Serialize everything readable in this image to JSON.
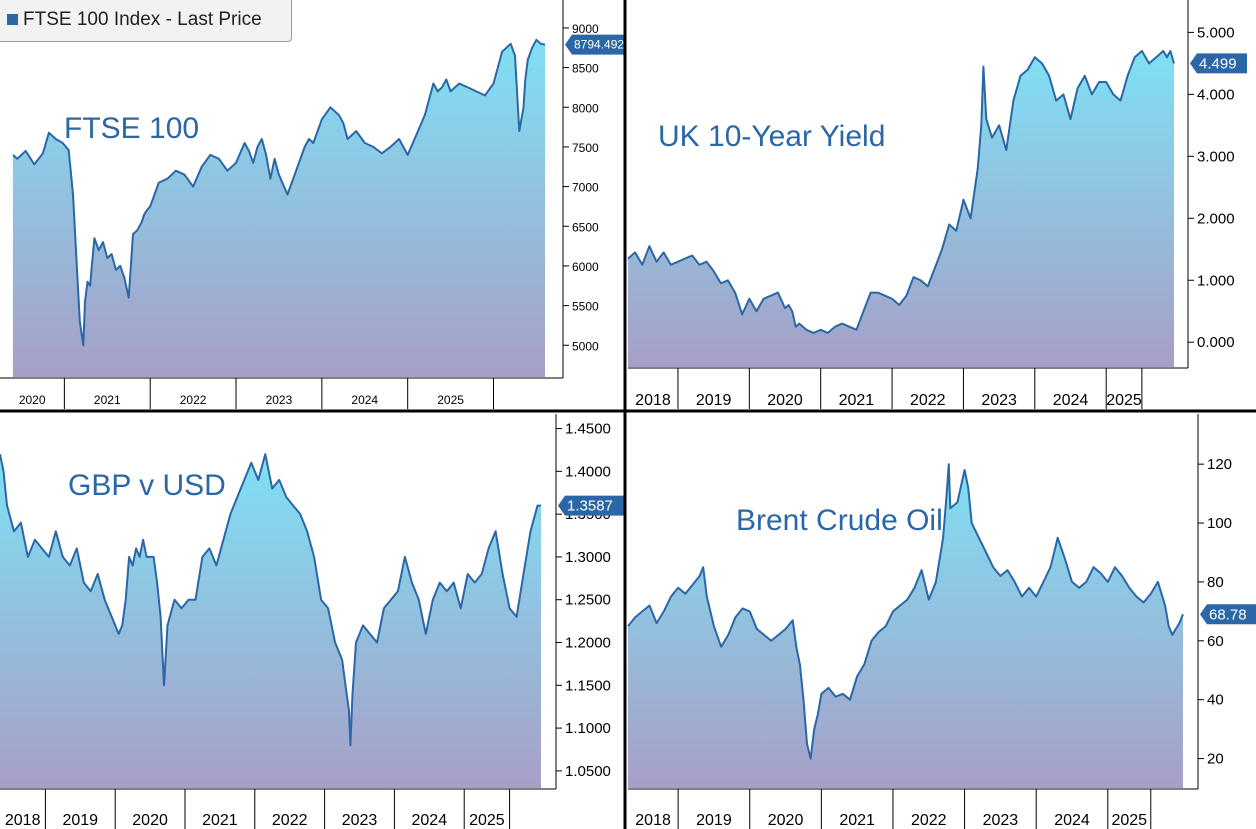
{
  "legend": {
    "label": "FTSE 100 Index - Last Price"
  },
  "colors": {
    "line": "#2b67a6",
    "fill_top": "#7fe0f4",
    "fill_bottom": "#a79fc7",
    "label_bg": "#2b67a6"
  },
  "chart_data": [
    {
      "id": "ftse",
      "type": "area",
      "title": "FTSE 100",
      "last_value": "8794.492",
      "y_ticks": [
        "9000",
        "8500",
        "8000",
        "7500",
        "7000",
        "6500",
        "6000",
        "5500",
        "5000"
      ],
      "x_labels": [
        "2020",
        "2021",
        "2022",
        "2023",
        "2024",
        "2025"
      ],
      "ylim": [
        4600,
        9100
      ],
      "x": [
        2019.3,
        2019.35,
        2019.45,
        2019.55,
        2019.65,
        2019.72,
        2019.8,
        2019.88,
        2019.95,
        2020.0,
        2020.04,
        2020.08,
        2020.12,
        2020.14,
        2020.17,
        2020.2,
        2020.22,
        2020.25,
        2020.3,
        2020.35,
        2020.4,
        2020.45,
        2020.5,
        2020.55,
        2020.6,
        2020.65,
        2020.7,
        2020.75,
        2020.8,
        2020.83,
        2020.86,
        2020.9,
        2020.95,
        2021.0,
        2021.1,
        2021.2,
        2021.3,
        2021.4,
        2021.5,
        2021.6,
        2021.7,
        2021.8,
        2021.9,
        2022.0,
        2022.05,
        2022.1,
        2022.15,
        2022.2,
        2022.25,
        2022.3,
        2022.35,
        2022.4,
        2022.5,
        2022.6,
        2022.7,
        2022.75,
        2022.8,
        2022.9,
        2023.0,
        2023.1,
        2023.15,
        2023.2,
        2023.3,
        2023.4,
        2023.5,
        2023.6,
        2023.7,
        2023.8,
        2023.9,
        2024.0,
        2024.1,
        2024.2,
        2024.25,
        2024.3,
        2024.35,
        2024.4,
        2024.5,
        2024.6,
        2024.7,
        2024.8,
        2024.9,
        2024.95,
        2025.0,
        2025.1,
        2025.15,
        2025.2,
        2025.25,
        2025.27,
        2025.3,
        2025.35,
        2025.4,
        2025.45,
        2025.5
      ],
      "y": [
        7400,
        7350,
        7450,
        7280,
        7420,
        7680,
        7600,
        7550,
        7460,
        6900,
        6100,
        5300,
        5000,
        5550,
        5800,
        5750,
        6000,
        6350,
        6200,
        6300,
        6100,
        6150,
        5950,
        6000,
        5850,
        5600,
        6400,
        6450,
        6550,
        6650,
        6700,
        6750,
        6900,
        7050,
        7100,
        7200,
        7150,
        7000,
        7250,
        7400,
        7350,
        7200,
        7300,
        7550,
        7450,
        7300,
        7500,
        7600,
        7400,
        7100,
        7350,
        7150,
        6900,
        7200,
        7500,
        7600,
        7550,
        7850,
        8000,
        7900,
        7800,
        7600,
        7700,
        7550,
        7500,
        7420,
        7500,
        7600,
        7400,
        7650,
        7900,
        8300,
        8200,
        8250,
        8350,
        8200,
        8300,
        8250,
        8200,
        8150,
        8300,
        8500,
        8700,
        8800,
        8650,
        7700,
        8000,
        8350,
        8600,
        8750,
        8850,
        8800,
        8790
      ]
    },
    {
      "id": "uk10y",
      "type": "area",
      "title": "UK 10-Year Yield",
      "last_value": "4.499",
      "y_ticks": [
        "5.000",
        "4.000",
        "3.000",
        "2.000",
        "1.000",
        "0.000"
      ],
      "x_labels": [
        "2018",
        "2019",
        "2020",
        "2021",
        "2022",
        "2023",
        "2024",
        "2025"
      ],
      "ylim": [
        -0.4,
        5.2
      ],
      "x": [
        2017.8,
        2017.9,
        2018.0,
        2018.05,
        2018.1,
        2018.2,
        2018.3,
        2018.4,
        2018.5,
        2018.6,
        2018.7,
        2018.8,
        2018.9,
        2019.0,
        2019.1,
        2019.2,
        2019.3,
        2019.4,
        2019.5,
        2019.6,
        2019.7,
        2019.8,
        2019.9,
        2020.0,
        2020.05,
        2020.1,
        2020.15,
        2020.2,
        2020.3,
        2020.4,
        2020.5,
        2020.6,
        2020.7,
        2020.8,
        2020.9,
        2021.0,
        2021.1,
        2021.2,
        2021.3,
        2021.4,
        2021.5,
        2021.6,
        2021.7,
        2021.8,
        2021.9,
        2022.0,
        2022.1,
        2022.2,
        2022.3,
        2022.4,
        2022.5,
        2022.6,
        2022.7,
        2022.75,
        2022.78,
        2022.82,
        2022.9,
        2023.0,
        2023.1,
        2023.2,
        2023.3,
        2023.4,
        2023.5,
        2023.6,
        2023.7,
        2023.8,
        2023.9,
        2024.0,
        2024.1,
        2024.2,
        2024.3,
        2024.4,
        2024.5,
        2024.6,
        2024.7,
        2024.8,
        2024.9,
        2025.0,
        2025.1,
        2025.2,
        2025.3,
        2025.35,
        2025.4,
        2025.45
      ],
      "y": [
        1.35,
        1.45,
        1.25,
        1.4,
        1.55,
        1.3,
        1.45,
        1.25,
        1.3,
        1.35,
        1.4,
        1.25,
        1.3,
        1.15,
        0.95,
        1.0,
        0.8,
        0.45,
        0.7,
        0.5,
        0.7,
        0.75,
        0.8,
        0.55,
        0.6,
        0.5,
        0.25,
        0.3,
        0.2,
        0.15,
        0.2,
        0.15,
        0.25,
        0.3,
        0.25,
        0.2,
        0.5,
        0.8,
        0.8,
        0.75,
        0.7,
        0.6,
        0.75,
        1.05,
        1.0,
        0.9,
        1.2,
        1.5,
        1.9,
        1.8,
        2.3,
        2.0,
        2.8,
        3.5,
        4.45,
        3.6,
        3.3,
        3.5,
        3.1,
        3.9,
        4.3,
        4.4,
        4.6,
        4.5,
        4.3,
        3.9,
        4.0,
        3.6,
        4.1,
        4.3,
        4.0,
        4.2,
        4.2,
        4.0,
        3.9,
        4.3,
        4.6,
        4.7,
        4.5,
        4.6,
        4.7,
        4.6,
        4.7,
        4.5
      ]
    },
    {
      "id": "gbpusd",
      "type": "area",
      "title": "GBP v USD",
      "last_value": "1.3587",
      "y_ticks": [
        "1.4500",
        "1.4000",
        "1.3500",
        "1.3000",
        "1.2500",
        "1.2000",
        "1.1500",
        "1.1000",
        "1.0500"
      ],
      "x_labels": [
        "2018",
        "2019",
        "2020",
        "2021",
        "2022",
        "2023",
        "2024",
        "2025"
      ],
      "ylim": [
        1.03,
        1.46
      ],
      "x": [
        2017.7,
        2017.75,
        2017.8,
        2017.9,
        2018.0,
        2018.1,
        2018.2,
        2018.3,
        2018.4,
        2018.5,
        2018.6,
        2018.7,
        2018.8,
        2018.9,
        2019.0,
        2019.1,
        2019.2,
        2019.3,
        2019.4,
        2019.45,
        2019.5,
        2019.55,
        2019.6,
        2019.65,
        2019.7,
        2019.75,
        2019.8,
        2019.9,
        2019.95,
        2020.0,
        2020.05,
        2020.1,
        2020.2,
        2020.3,
        2020.4,
        2020.5,
        2020.6,
        2020.7,
        2020.8,
        2020.9,
        2021.0,
        2021.1,
        2021.2,
        2021.3,
        2021.4,
        2021.5,
        2021.6,
        2021.7,
        2021.8,
        2021.9,
        2022.0,
        2022.1,
        2022.2,
        2022.3,
        2022.4,
        2022.5,
        2022.6,
        2022.65,
        2022.7,
        2022.72,
        2022.75,
        2022.8,
        2022.9,
        2023.0,
        2023.1,
        2023.2,
        2023.3,
        2023.4,
        2023.5,
        2023.6,
        2023.7,
        2023.8,
        2023.9,
        2024.0,
        2024.1,
        2024.2,
        2024.3,
        2024.4,
        2024.5,
        2024.6,
        2024.7,
        2024.8,
        2024.9,
        2025.0,
        2025.1,
        2025.2,
        2025.3,
        2025.4,
        2025.45
      ],
      "y": [
        1.42,
        1.4,
        1.36,
        1.33,
        1.34,
        1.3,
        1.32,
        1.31,
        1.3,
        1.33,
        1.3,
        1.29,
        1.31,
        1.27,
        1.26,
        1.28,
        1.25,
        1.23,
        1.21,
        1.22,
        1.25,
        1.3,
        1.29,
        1.31,
        1.3,
        1.32,
        1.3,
        1.3,
        1.27,
        1.23,
        1.15,
        1.22,
        1.25,
        1.24,
        1.25,
        1.25,
        1.3,
        1.31,
        1.29,
        1.32,
        1.35,
        1.37,
        1.39,
        1.41,
        1.39,
        1.42,
        1.38,
        1.39,
        1.37,
        1.36,
        1.35,
        1.33,
        1.3,
        1.25,
        1.24,
        1.2,
        1.18,
        1.15,
        1.12,
        1.08,
        1.14,
        1.2,
        1.22,
        1.21,
        1.2,
        1.24,
        1.25,
        1.26,
        1.3,
        1.27,
        1.25,
        1.21,
        1.25,
        1.27,
        1.26,
        1.27,
        1.24,
        1.28,
        1.27,
        1.28,
        1.31,
        1.33,
        1.28,
        1.24,
        1.23,
        1.28,
        1.33,
        1.36,
        1.36
      ]
    },
    {
      "id": "brent",
      "type": "area",
      "title": "Brent Crude Oil",
      "last_value": "68.78",
      "y_ticks": [
        "120",
        "100",
        "80",
        "60",
        "40",
        "20"
      ],
      "x_labels": [
        "2018",
        "2019",
        "2020",
        "2021",
        "2022",
        "2023",
        "2024",
        "2025"
      ],
      "ylim": [
        10,
        135
      ],
      "x": [
        2017.7,
        2017.8,
        2017.9,
        2018.0,
        2018.1,
        2018.2,
        2018.3,
        2018.4,
        2018.5,
        2018.6,
        2018.7,
        2018.75,
        2018.8,
        2018.9,
        2019.0,
        2019.1,
        2019.2,
        2019.3,
        2019.4,
        2019.5,
        2019.6,
        2019.7,
        2019.8,
        2019.9,
        2020.0,
        2020.05,
        2020.1,
        2020.15,
        2020.2,
        2020.25,
        2020.3,
        2020.35,
        2020.4,
        2020.5,
        2020.6,
        2020.7,
        2020.8,
        2020.9,
        2021.0,
        2021.1,
        2021.2,
        2021.3,
        2021.4,
        2021.5,
        2021.6,
        2021.7,
        2021.8,
        2021.9,
        2022.0,
        2022.1,
        2022.15,
        2022.18,
        2022.2,
        2022.3,
        2022.4,
        2022.45,
        2022.5,
        2022.6,
        2022.7,
        2022.8,
        2022.9,
        2023.0,
        2023.1,
        2023.2,
        2023.3,
        2023.4,
        2023.5,
        2023.6,
        2023.7,
        2023.8,
        2023.9,
        2024.0,
        2024.1,
        2024.2,
        2024.3,
        2024.4,
        2024.5,
        2024.6,
        2024.7,
        2024.8,
        2024.9,
        2025.0,
        2025.1,
        2025.2,
        2025.25,
        2025.3,
        2025.35,
        2025.4,
        2025.45
      ],
      "y": [
        65,
        68,
        70,
        72,
        66,
        70,
        75,
        78,
        76,
        79,
        82,
        85,
        75,
        65,
        58,
        62,
        68,
        71,
        70,
        64,
        62,
        60,
        62,
        64,
        67,
        58,
        52,
        40,
        25,
        20,
        30,
        35,
        42,
        44,
        41,
        42,
        40,
        48,
        52,
        60,
        63,
        65,
        70,
        72,
        74,
        78,
        84,
        74,
        80,
        95,
        110,
        120,
        105,
        107,
        118,
        112,
        100,
        95,
        90,
        85,
        82,
        84,
        80,
        75,
        78,
        75,
        80,
        85,
        95,
        88,
        80,
        78,
        80,
        85,
        83,
        80,
        85,
        82,
        78,
        75,
        73,
        76,
        80,
        72,
        65,
        62,
        64,
        66,
        69
      ]
    }
  ]
}
